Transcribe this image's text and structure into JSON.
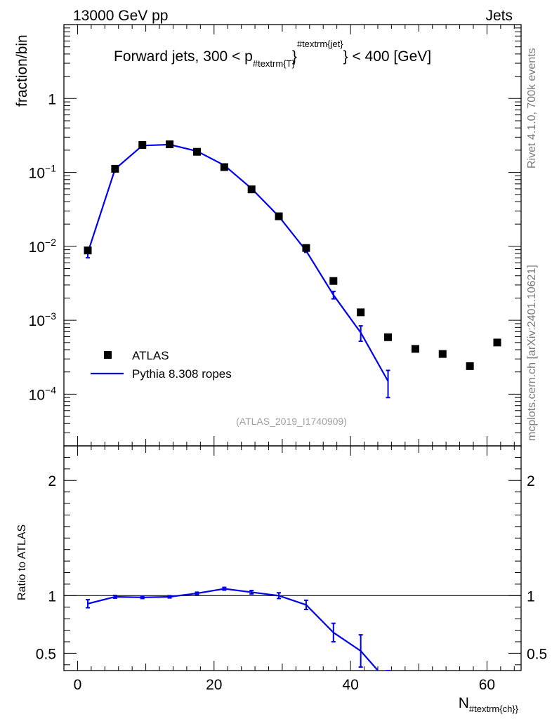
{
  "header": {
    "energy_label": "13000 GeV pp",
    "category_label": "Jets"
  },
  "side_labels": {
    "rivet": "Rivet 4.1.0,  700k events",
    "mcplots": "mcplots.cern.ch [arXiv:2401.10621]"
  },
  "chart_data": [
    {
      "type": "scatter",
      "title_parts": {
        "prefix": "Forward jets, 300 < p",
        "sub": "#textrm{T}",
        "sup": "#textrm{jet}",
        "suffix": "} < 400 [GeV]"
      },
      "ylabel": "fraction/bin",
      "yscale": "log",
      "ylim": [
        2e-05,
        10
      ],
      "xlim": [
        -2,
        65
      ],
      "y_tick_labels": [
        {
          "value": 1,
          "base": "1",
          "exp": ""
        },
        {
          "value": 0.1,
          "base": "10",
          "exp": "−1"
        },
        {
          "value": 0.01,
          "base": "10",
          "exp": "−2"
        },
        {
          "value": 0.001,
          "base": "10",
          "exp": "−3"
        },
        {
          "value": 0.0001,
          "base": "10",
          "exp": "−4"
        }
      ],
      "source_label": "(ATLAS_2019_I1740909)",
      "legend": {
        "position": "bottom-left",
        "entries": [
          {
            "label": "ATLAS",
            "marker": "square",
            "color": "#000000"
          },
          {
            "label": "Pythia 8.308 ropes",
            "marker": "line",
            "color": "#0000ee"
          }
        ]
      },
      "series": [
        {
          "name": "ATLAS",
          "color": "#000000",
          "x": [
            1.5,
            5.5,
            9.5,
            13.5,
            17.5,
            21.5,
            25.5,
            29.5,
            33.5,
            37.5,
            41.5,
            45.5,
            49.5,
            53.5,
            57.5,
            61.5
          ],
          "y": [
            0.0088,
            0.112,
            0.235,
            0.24,
            0.19,
            0.118,
            0.059,
            0.0255,
            0.0095,
            0.0034,
            0.00128,
            0.00059,
            0.00041,
            0.00035,
            0.00024,
            0.0005
          ]
        },
        {
          "name": "Pythia 8.308 ropes",
          "color": "#0000ee",
          "x": [
            1.5,
            5.5,
            9.5,
            13.5,
            17.5,
            21.5,
            25.5,
            29.5,
            33.5,
            37.5,
            41.5,
            45.5
          ],
          "y": [
            0.0082,
            0.111,
            0.231,
            0.238,
            0.194,
            0.125,
            0.0605,
            0.0254,
            0.0087,
            0.0022,
            0.00068,
            0.00015
          ],
          "y_err_low": [
            0.0012,
            0.002,
            0.003,
            0.003,
            0.003,
            0.002,
            0.001,
            0.0007,
            0.0004,
            0.00025,
            0.00016,
            6e-05
          ],
          "y_err_high": [
            0.0012,
            0.002,
            0.003,
            0.003,
            0.003,
            0.002,
            0.001,
            0.0007,
            0.0004,
            0.00025,
            0.00016,
            6e-05
          ]
        }
      ]
    },
    {
      "type": "line",
      "ylabel": "Ratio to ATLAS",
      "xlabel_parts": {
        "main": "N",
        "sub": "#textrm{ch}}"
      },
      "xlim": [
        -2,
        65
      ],
      "ylim": [
        0.35,
        2.3
      ],
      "x_ticks": [
        0,
        20,
        40,
        60
      ],
      "y_tick_labels": [
        "0.5",
        "1",
        "2"
      ],
      "y_tick_values": [
        0.5,
        1,
        2
      ],
      "reference_line": 1,
      "series": [
        {
          "name": "Pythia 8.308 ropes",
          "color": "#0000ee",
          "x": [
            1.5,
            5.5,
            9.5,
            13.5,
            17.5,
            21.5,
            25.5,
            29.5,
            33.5,
            37.5,
            41.5,
            45.5
          ],
          "y": [
            0.93,
            0.99,
            0.985,
            0.99,
            1.02,
            1.06,
            1.03,
            1.0,
            0.92,
            0.68,
            0.52,
            0.25
          ],
          "y_err_low": [
            0.035,
            0.012,
            0.01,
            0.01,
            0.01,
            0.012,
            0.015,
            0.025,
            0.04,
            0.08,
            0.14,
            0.1
          ],
          "y_err_high": [
            0.035,
            0.012,
            0.01,
            0.01,
            0.01,
            0.012,
            0.015,
            0.025,
            0.04,
            0.08,
            0.14,
            0.1
          ]
        }
      ]
    }
  ]
}
